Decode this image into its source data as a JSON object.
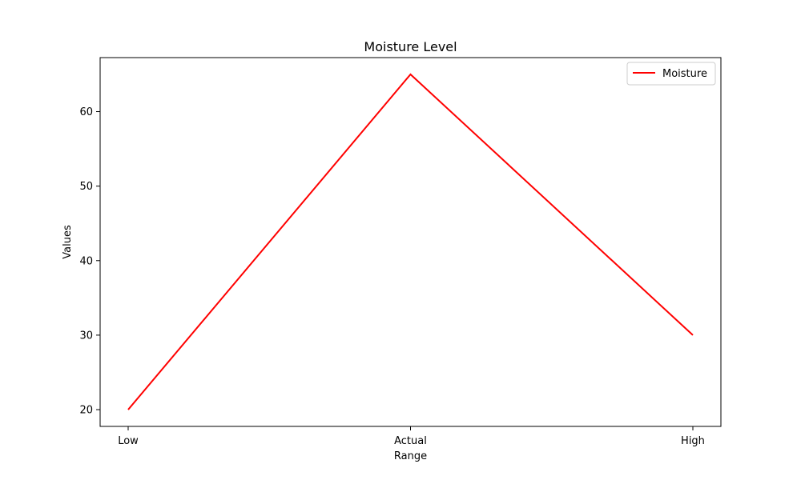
{
  "chart_data": {
    "type": "line",
    "title": "Moisture Level",
    "xlabel": "Range",
    "ylabel": "Values",
    "categories": [
      "Low",
      "Actual",
      "High"
    ],
    "series": [
      {
        "name": "Moisture",
        "values": [
          20,
          65,
          30
        ],
        "color": "#ff0000"
      }
    ],
    "ylim": [
      17.75,
      67.25
    ],
    "yticks": [
      20,
      30,
      40,
      50,
      60
    ],
    "grid": false,
    "legend": "top-right"
  }
}
